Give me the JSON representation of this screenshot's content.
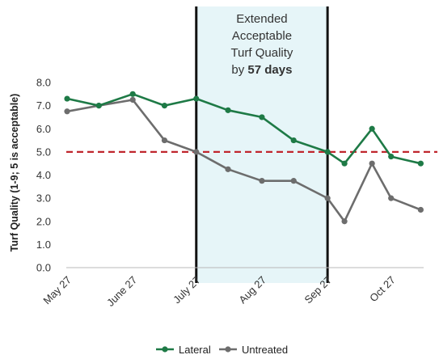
{
  "chart_data": {
    "type": "line",
    "x": [
      "May 27",
      "Jun 11",
      "June 27",
      "Jul 12",
      "July 27",
      "Aug 11",
      "Aug 27",
      "Sep 11",
      "Sep 27",
      "Oct 5",
      "Oct 18",
      "Oct 27",
      "Nov 10"
    ],
    "x_tick_labels": [
      "May 27",
      "June 27",
      "July 27",
      "Aug 27",
      "Sep 27",
      "Oct 27"
    ],
    "ylabel": "Turf Quality (1-9; 5 is acceptable)",
    "ylim": [
      0,
      8
    ],
    "y_ticks": [
      "0.0",
      "1.0",
      "2.0",
      "3.0",
      "4.0",
      "5.0",
      "6.0",
      "7.0",
      "8.0"
    ],
    "grid": false,
    "legend": "bottom",
    "series": [
      {
        "name": "Lateral",
        "color": "#1e7a46",
        "points": [
          {
            "x": "May 27",
            "y": 7.3
          },
          {
            "x": "Jun 11",
            "y": 7.0
          },
          {
            "x": "June 27",
            "y": 7.5
          },
          {
            "x": "Jul 12",
            "y": 7.0
          },
          {
            "x": "July 27",
            "y": 7.3
          },
          {
            "x": "Aug 11",
            "y": 6.8
          },
          {
            "x": "Aug 27",
            "y": 6.5
          },
          {
            "x": "Sep 11",
            "y": 5.5
          },
          {
            "x": "Sep 27",
            "y": 5.0
          },
          {
            "x": "Oct 5",
            "y": 4.5
          },
          {
            "x": "Oct 18",
            "y": 6.0
          },
          {
            "x": "Oct 27",
            "y": 4.8
          },
          {
            "x": "Nov 10",
            "y": 4.5
          }
        ]
      },
      {
        "name": "Untreated",
        "color": "#6d6d6d",
        "points": [
          {
            "x": "May 27",
            "y": 6.75
          },
          {
            "x": "Jun 11",
            "y": 7.0
          },
          {
            "x": "June 27",
            "y": 7.25
          },
          {
            "x": "Jul 12",
            "y": 5.5
          },
          {
            "x": "July 27",
            "y": 5.0
          },
          {
            "x": "Aug 11",
            "y": 4.25
          },
          {
            "x": "Aug 27",
            "y": 3.75
          },
          {
            "x": "Sep 11",
            "y": 3.75
          },
          {
            "x": "Sep 27",
            "y": 3.0
          },
          {
            "x": "Oct 5",
            "y": 2.0
          },
          {
            "x": "Oct 18",
            "y": 4.5
          },
          {
            "x": "Oct 27",
            "y": 3.0
          },
          {
            "x": "Nov 10",
            "y": 2.5
          }
        ]
      }
    ],
    "threshold": {
      "y": 5.0,
      "color": "#c0262d",
      "style": "dashed"
    },
    "highlight_region": {
      "x_start": "July 27",
      "x_end": "Sep 27",
      "fill": "#e6f5f8"
    },
    "annotation": {
      "lines": [
        "Extended",
        "Acceptable",
        "Turf Quality"
      ],
      "last_line_prefix": "by ",
      "last_line_bold": "57 days"
    }
  }
}
